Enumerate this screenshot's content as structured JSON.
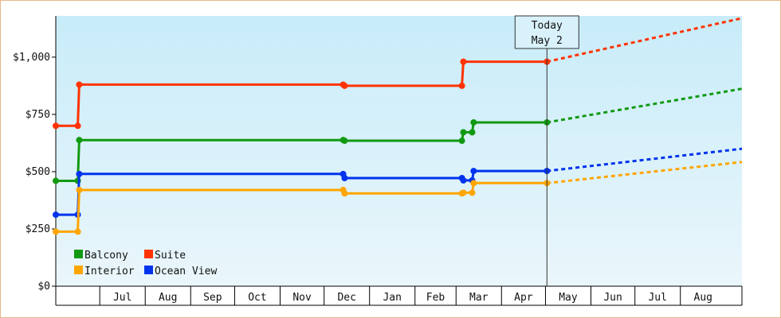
{
  "chart_data": {
    "type": "line",
    "y_ticks": [
      {
        "value": 0,
        "label": "$0"
      },
      {
        "value": 250,
        "label": "$250"
      },
      {
        "value": 500,
        "label": "$500"
      },
      {
        "value": 750,
        "label": "$750"
      },
      {
        "value": 1000,
        "label": "$1,000"
      }
    ],
    "ylim": [
      0,
      1180
    ],
    "x_months": [
      "Jul",
      "Aug",
      "Sep",
      "Oct",
      "Nov",
      "Dec",
      "Jan",
      "Feb",
      "Mar",
      "Apr",
      "May",
      "Jun",
      "Jul",
      "Aug"
    ],
    "xlim": [
      "2024-06-01",
      "2025-09-12"
    ],
    "today": {
      "line1": "Today",
      "line2": "May 2",
      "date": "2025-05-02"
    },
    "series": [
      {
        "name": "Suite",
        "color": "#ff3300",
        "values": [
          {
            "x": "2024-06-01",
            "y": 700
          },
          {
            "x": "2024-06-16",
            "y": 700
          },
          {
            "x": "2024-06-17",
            "y": 880
          },
          {
            "x": "2024-12-14",
            "y": 880
          },
          {
            "x": "2024-12-15",
            "y": 875
          },
          {
            "x": "2025-03-05",
            "y": 875
          },
          {
            "x": "2025-03-06",
            "y": 980
          },
          {
            "x": "2025-05-02",
            "y": 980
          }
        ],
        "projection": [
          {
            "x": "2025-05-02",
            "y": 980
          },
          {
            "x": "2025-09-12",
            "y": 1170
          }
        ]
      },
      {
        "name": "Balcony",
        "color": "#119911",
        "values": [
          {
            "x": "2024-06-01",
            "y": 460
          },
          {
            "x": "2024-06-16",
            "y": 460
          },
          {
            "x": "2024-06-17",
            "y": 638
          },
          {
            "x": "2024-12-14",
            "y": 638
          },
          {
            "x": "2024-12-15",
            "y": 635
          },
          {
            "x": "2025-03-05",
            "y": 635
          },
          {
            "x": "2025-03-06",
            "y": 672
          },
          {
            "x": "2025-03-12",
            "y": 672
          },
          {
            "x": "2025-03-13",
            "y": 715
          },
          {
            "x": "2025-05-02",
            "y": 715
          }
        ],
        "projection": [
          {
            "x": "2025-05-02",
            "y": 715
          },
          {
            "x": "2025-09-12",
            "y": 862
          }
        ]
      },
      {
        "name": "Ocean View",
        "color": "#0033ee",
        "values": [
          {
            "x": "2024-06-01",
            "y": 312
          },
          {
            "x": "2024-06-16",
            "y": 312
          },
          {
            "x": "2024-06-17",
            "y": 490
          },
          {
            "x": "2024-12-14",
            "y": 490
          },
          {
            "x": "2024-12-15",
            "y": 472
          },
          {
            "x": "2025-03-05",
            "y": 472
          },
          {
            "x": "2025-03-06",
            "y": 462
          },
          {
            "x": "2025-03-12",
            "y": 462
          },
          {
            "x": "2025-03-13",
            "y": 503
          },
          {
            "x": "2025-05-02",
            "y": 503
          }
        ],
        "projection": [
          {
            "x": "2025-05-02",
            "y": 503
          },
          {
            "x": "2025-09-12",
            "y": 600
          }
        ]
      },
      {
        "name": "Interior",
        "color": "#ffa500",
        "values": [
          {
            "x": "2024-06-01",
            "y": 238
          },
          {
            "x": "2024-06-16",
            "y": 238
          },
          {
            "x": "2024-06-17",
            "y": 420
          },
          {
            "x": "2024-12-14",
            "y": 420
          },
          {
            "x": "2024-12-15",
            "y": 405
          },
          {
            "x": "2025-03-05",
            "y": 405
          },
          {
            "x": "2025-03-06",
            "y": 408
          },
          {
            "x": "2025-03-12",
            "y": 408
          },
          {
            "x": "2025-03-13",
            "y": 450
          },
          {
            "x": "2025-05-02",
            "y": 450
          }
        ],
        "projection": [
          {
            "x": "2025-05-02",
            "y": 450
          },
          {
            "x": "2025-09-12",
            "y": 542
          }
        ]
      }
    ],
    "legend": [
      {
        "name": "Balcony",
        "color": "#119911"
      },
      {
        "name": "Suite",
        "color": "#ff3300"
      },
      {
        "name": "Interior",
        "color": "#ffa500"
      },
      {
        "name": "Ocean View",
        "color": "#0033ee"
      }
    ],
    "legend_position": "bottom-left",
    "background_gradient": [
      "#c8ecf9",
      "#eaf6fb"
    ],
    "grid": false
  }
}
